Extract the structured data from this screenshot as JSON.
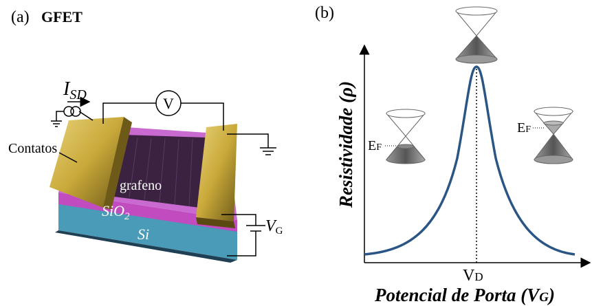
{
  "panel_a": {
    "label": "(a)",
    "title": "GFET",
    "current_symbol": "I",
    "current_subscript": "SD",
    "voltmeter": "V",
    "contacts": "Contatos",
    "graphene": "grafeno",
    "oxide": "SiO",
    "oxide_subscript": "2",
    "substrate": "Si",
    "gate_symbol": "V",
    "gate_subscript": "G"
  },
  "panel_b": {
    "label": "(b)",
    "y_axis": "Resistividade (ρ)",
    "x_axis": "Potencial de Porta (V",
    "x_axis_subscript": "G",
    "x_axis_close": ")",
    "dirac_symbol": "V",
    "dirac_subscript": "D",
    "fermi_left_symbol": "E",
    "fermi_left_subscript": "F",
    "fermi_right_symbol": "E",
    "fermi_right_subscript": "F"
  }
}
